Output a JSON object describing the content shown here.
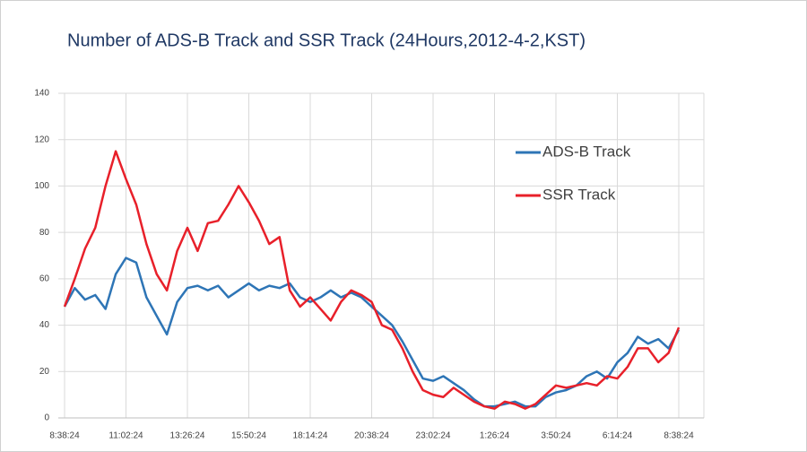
{
  "chart_data": {
    "type": "line",
    "title": "Number of ADS-B Track and SSR Track (24Hours,2012-4-2,KST)",
    "categories": [
      "8:38:24",
      null,
      null,
      null,
      null,
      null,
      "11:02:24",
      null,
      null,
      null,
      null,
      null,
      "13:26:24",
      null,
      null,
      null,
      null,
      null,
      "15:50:24",
      null,
      null,
      null,
      null,
      null,
      "18:14:24",
      null,
      null,
      null,
      null,
      null,
      "20:38:24",
      null,
      null,
      null,
      null,
      null,
      "23:02:24",
      null,
      null,
      null,
      null,
      null,
      "1:26:24",
      null,
      null,
      null,
      null,
      null,
      "3:50:24",
      null,
      null,
      null,
      null,
      null,
      "6:14:24",
      null,
      null,
      null,
      null,
      null,
      "8:38:24"
    ],
    "series": [
      {
        "name": "ADS-B Track",
        "color": "#2e75b6",
        "values": [
          48,
          56,
          51,
          53,
          47,
          62,
          69,
          67,
          52,
          44,
          36,
          50,
          56,
          57,
          55,
          57,
          52,
          55,
          58,
          55,
          57,
          56,
          58,
          52,
          50,
          52,
          55,
          52,
          54,
          52,
          48,
          44,
          40,
          33,
          25,
          17,
          16,
          18,
          15,
          12,
          8,
          5,
          5,
          6,
          7,
          5,
          5,
          9,
          11,
          12,
          14,
          18,
          20,
          17,
          24,
          28,
          35,
          32,
          34,
          30,
          38
        ]
      },
      {
        "name": "SSR Track",
        "color": "#e8202a",
        "values": [
          48,
          60,
          73,
          82,
          100,
          115,
          103,
          92,
          75,
          62,
          55,
          72,
          82,
          72,
          84,
          85,
          92,
          100,
          93,
          85,
          75,
          78,
          55,
          48,
          52,
          47,
          42,
          50,
          55,
          53,
          50,
          40,
          38,
          30,
          20,
          12,
          10,
          9,
          13,
          10,
          7,
          5,
          4,
          7,
          6,
          4,
          6,
          10,
          14,
          13,
          14,
          15,
          14,
          18,
          17,
          22,
          30,
          30,
          24,
          28,
          39
        ]
      }
    ],
    "ylim": [
      0,
      140
    ],
    "yticks": [
      0,
      20,
      40,
      60,
      80,
      100,
      120,
      140
    ],
    "grid": true,
    "legend": "upper right"
  }
}
